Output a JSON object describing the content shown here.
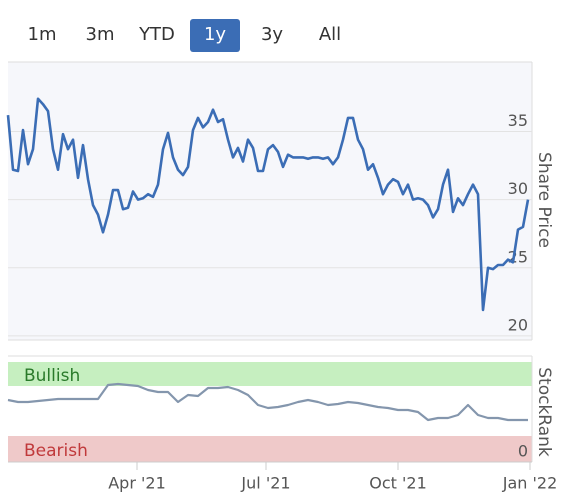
{
  "range_buttons": {
    "options": [
      "1m",
      "3m",
      "YTD",
      "1y",
      "3y",
      "All"
    ],
    "selected": "1y"
  },
  "chart_data": [
    {
      "type": "line",
      "y_label": "Share Price",
      "xlim": [
        0,
        104.8
      ],
      "ylim": [
        19.7,
        40.1
      ],
      "yticks": [
        20,
        25,
        30,
        35
      ],
      "grid": true,
      "series": [
        {
          "color": "#3b6db5",
          "values": [
            36.2,
            32.2,
            32.1,
            35.1,
            32.6,
            33.7,
            37.4,
            37.0,
            36.5,
            33.7,
            32.2,
            34.8,
            33.7,
            34.4,
            31.6,
            34.0,
            31.5,
            29.6,
            28.9,
            27.6,
            28.9,
            30.7,
            30.7,
            29.3,
            29.4,
            30.6,
            30.0,
            30.1,
            30.4,
            30.2,
            31.1,
            33.7,
            34.9,
            33.1,
            32.2,
            31.8,
            32.4,
            35.1,
            36.0,
            35.3,
            35.7,
            36.6,
            35.7,
            35.9,
            34.4,
            33.1,
            33.8,
            32.8,
            34.4,
            33.8,
            32.1,
            32.1,
            33.7,
            34.0,
            33.5,
            32.4,
            33.3,
            33.1,
            33.1,
            33.1,
            33.0,
            33.1,
            33.1,
            33.0,
            33.1,
            32.6,
            33.1,
            34.4,
            36.0,
            36.0,
            34.4,
            33.7,
            32.2,
            32.6,
            31.6,
            30.4,
            31.1,
            31.5,
            31.3,
            30.4,
            31.1,
            30.0,
            30.1,
            30.0,
            29.6,
            28.7,
            29.3,
            31.1,
            32.2,
            29.1,
            30.1,
            29.6,
            30.4,
            31.1,
            30.4,
            21.9,
            25.0,
            24.9,
            25.2,
            25.2,
            25.6,
            25.4,
            27.8,
            28.0,
            30.0
          ]
        }
      ]
    },
    {
      "type": "line",
      "y_label": "StockRank",
      "bullish_label": "Bullish",
      "bearish_label": "Bearish",
      "xlim": [
        0,
        52.4
      ],
      "ylim": [
        0,
        100
      ],
      "yticks": [
        0
      ],
      "xticks": [
        {
          "value": 12.9,
          "label": "Apr '21"
        },
        {
          "value": 25.8,
          "label": "Jul '21"
        },
        {
          "value": 39,
          "label": "Oct '21"
        },
        {
          "value": 52.2,
          "label": "Jan '22"
        }
      ],
      "series": [
        {
          "color": "#8496ad",
          "values": [
            60,
            58,
            58,
            59,
            60,
            61,
            61,
            61,
            61,
            61,
            75,
            76,
            75,
            74,
            70,
            68,
            68,
            58,
            65,
            64,
            72,
            72,
            73,
            70,
            65,
            55,
            52,
            53,
            55,
            58,
            60,
            58,
            55,
            56,
            58,
            57,
            55,
            53,
            52,
            50,
            50,
            48,
            40,
            42,
            42,
            45,
            55,
            45,
            42,
            42,
            40,
            40,
            40
          ]
        }
      ]
    }
  ]
}
